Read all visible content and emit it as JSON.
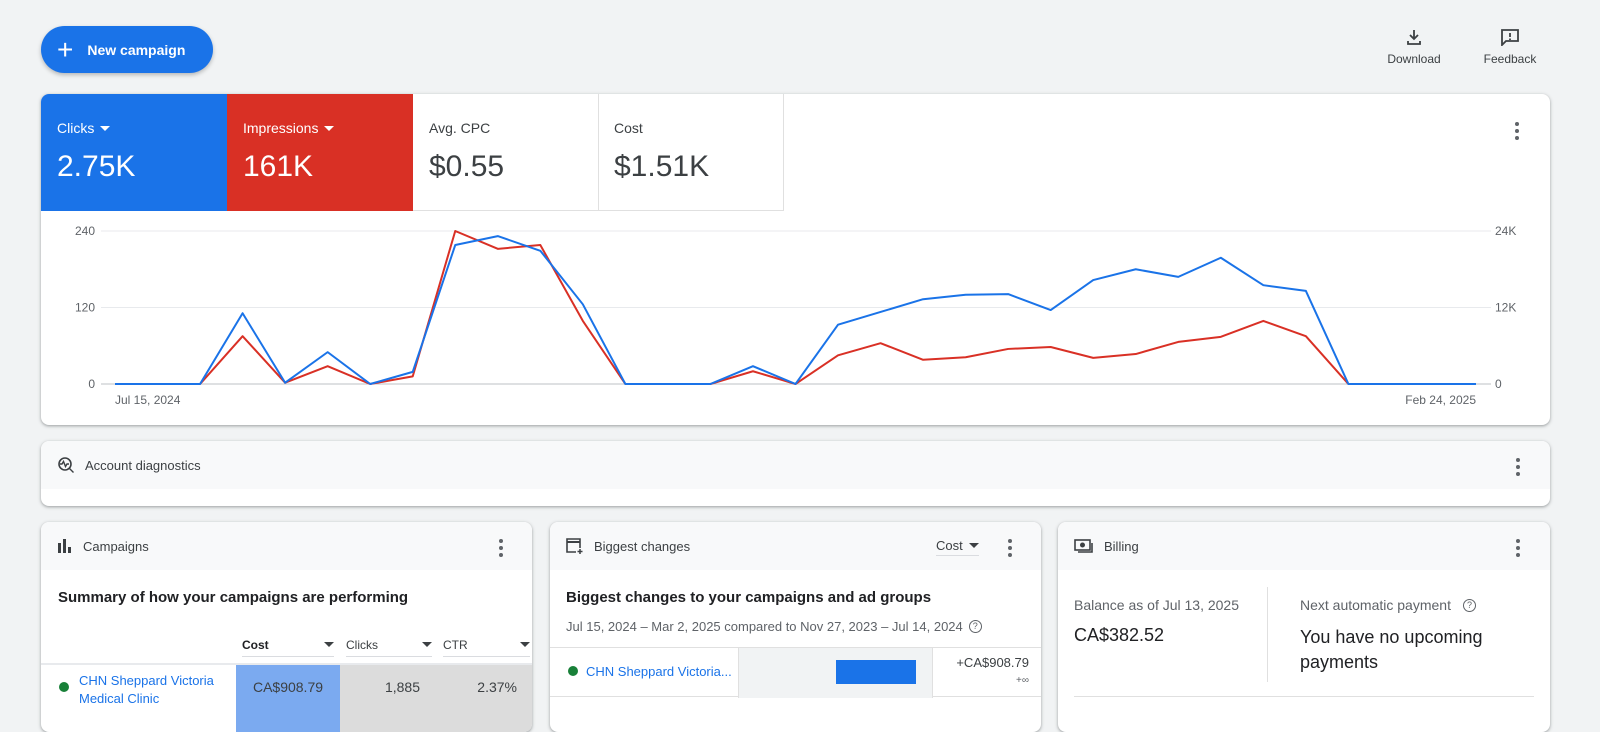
{
  "toolbar": {
    "new_campaign": "New campaign",
    "download": "Download",
    "feedback": "Feedback"
  },
  "metrics": [
    {
      "label": "Clicks",
      "value": "2.75K",
      "color": "#1a73e8"
    },
    {
      "label": "Impressions",
      "value": "161K",
      "color": "#d93025"
    },
    {
      "label": "Avg. CPC",
      "value": "$0.55"
    },
    {
      "label": "Cost",
      "value": "$1.51K"
    }
  ],
  "chart_data": {
    "type": "line",
    "x_start_label": "Jul 15, 2024",
    "x_end_label": "Feb 24, 2025",
    "y_left": {
      "ticks": [
        "0",
        "120",
        "240"
      ],
      "range": [
        0,
        240
      ]
    },
    "y_right": {
      "ticks": [
        "0",
        "12K",
        "24K"
      ],
      "range": [
        0,
        24000
      ]
    },
    "grid": true,
    "series": [
      {
        "name": "Clicks",
        "axis": "left",
        "color": "#1a73e8",
        "values": [
          0,
          0,
          0,
          111,
          2,
          50,
          0,
          19,
          218,
          232,
          209,
          125,
          0,
          0,
          0,
          28,
          0,
          93,
          113,
          133,
          140,
          141,
          116,
          163,
          180,
          168,
          198,
          155,
          146,
          0,
          0,
          0,
          0
        ]
      },
      {
        "name": "Impressions",
        "axis": "right",
        "color": "#d93025",
        "values": [
          0,
          0,
          0,
          7500,
          200,
          2800,
          0,
          1200,
          24000,
          21200,
          21800,
          9900,
          0,
          0,
          0,
          2000,
          0,
          4500,
          6400,
          3800,
          4200,
          5500,
          5800,
          4100,
          4700,
          6600,
          7400,
          9900,
          7500,
          0,
          0,
          0,
          0
        ]
      }
    ]
  },
  "diagnostics": {
    "title": "Account diagnostics"
  },
  "campaigns": {
    "title": "Campaigns",
    "subtitle": "Summary of how your campaigns are performing",
    "columns": [
      "Cost",
      "Clicks",
      "CTR"
    ],
    "rows": [
      {
        "name": "CHN Sheppard Victoria Medical Clinic",
        "cost": "CA$908.79",
        "clicks": "1,885",
        "ctr": "2.37%"
      }
    ]
  },
  "changes": {
    "title": "Biggest changes",
    "metric": "Cost",
    "subtitle": "Biggest changes to your campaigns and ad groups",
    "range": "Jul 15, 2024 – Mar 2, 2025 compared to Nov 27, 2023 – Jul 14, 2024",
    "rows": [
      {
        "name": "CHN Sheppard Victoria...",
        "change": "+CA$908.79",
        "pct": "+∞"
      }
    ]
  },
  "billing": {
    "title": "Billing",
    "balance_label": "Balance as of Jul 13, 2025",
    "balance": "CA$382.52",
    "next_label": "Next automatic payment",
    "next_value": "You have no upcoming payments"
  }
}
